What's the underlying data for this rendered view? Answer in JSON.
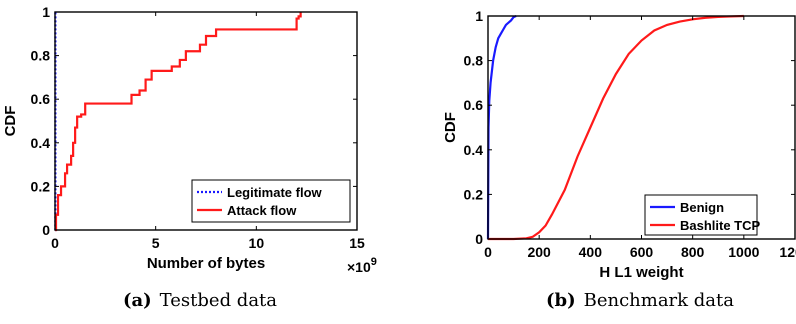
{
  "chart_data": [
    {
      "type": "line",
      "caption_tag": "(a)",
      "caption": "Testbed data",
      "xlabel": "Number of bytes",
      "x_exponent_label": "×10",
      "x_exponent_power": "9",
      "ylabel": "CDF",
      "xlim": [
        0,
        15
      ],
      "ylim": [
        0,
        1
      ],
      "x_ticks": [
        0,
        5,
        10,
        15
      ],
      "y_ticks": [
        0,
        0.2,
        0.4,
        0.6,
        0.8,
        1
      ],
      "x_tick_labels": [
        "0",
        "5",
        "10",
        "15"
      ],
      "y_tick_labels": [
        "0",
        "0.2",
        "0.4",
        "0.6",
        "0.8",
        "1"
      ],
      "legend_position": "bottom-right",
      "series": [
        {
          "name": "Legitimate flow",
          "color": "#1a1aff",
          "style": "dotted",
          "x": [
            0,
            0.02,
            0.02,
            0.02
          ],
          "y": [
            0,
            0,
            0.5,
            1
          ]
        },
        {
          "name": "Attack flow",
          "color": "#ff1a1a",
          "style": "solid",
          "step": true,
          "x": [
            0,
            0.05,
            0.15,
            0.3,
            0.5,
            0.6,
            0.8,
            0.9,
            1.0,
            1.1,
            1.2,
            1.3,
            1.5,
            2.0,
            3.8,
            4.2,
            4.5,
            4.8,
            5.6,
            5.8,
            6.2,
            6.5,
            7.2,
            7.5,
            8.0,
            12.0,
            12.1,
            12.2
          ],
          "y": [
            0,
            0.07,
            0.16,
            0.2,
            0.26,
            0.3,
            0.34,
            0.4,
            0.47,
            0.52,
            0.52,
            0.53,
            0.58,
            0.58,
            0.62,
            0.64,
            0.69,
            0.73,
            0.73,
            0.75,
            0.78,
            0.82,
            0.85,
            0.89,
            0.92,
            0.97,
            0.98,
            1.0
          ]
        }
      ]
    },
    {
      "type": "line",
      "caption_tag": "(b)",
      "caption": "Benchmark data",
      "xlabel": "H L1 weight",
      "ylabel": "CDF",
      "xlim": [
        0,
        1200
      ],
      "ylim": [
        0,
        1
      ],
      "x_ticks": [
        0,
        200,
        400,
        600,
        800,
        1000,
        1200
      ],
      "y_ticks": [
        0,
        0.2,
        0.4,
        0.6,
        0.8,
        1
      ],
      "x_tick_labels": [
        "0",
        "200",
        "400",
        "600",
        "800",
        "1000",
        "1200"
      ],
      "y_tick_labels": [
        "0",
        "0.2",
        "0.4",
        "0.6",
        "0.8",
        "1"
      ],
      "legend_position": "bottom-right",
      "series": [
        {
          "name": "Benign",
          "color": "#1a1aff",
          "style": "solid",
          "x": [
            0,
            2,
            5,
            10,
            20,
            30,
            40,
            50,
            60,
            70,
            80,
            90,
            100,
            110
          ],
          "y": [
            0,
            0.5,
            0.62,
            0.7,
            0.8,
            0.86,
            0.9,
            0.92,
            0.94,
            0.96,
            0.97,
            0.98,
            0.995,
            1.0
          ]
        },
        {
          "name": "Bashlite TCP",
          "color": "#ff1a1a",
          "style": "solid",
          "x": [
            0,
            100,
            150,
            175,
            200,
            225,
            250,
            300,
            350,
            400,
            450,
            500,
            550,
            600,
            650,
            700,
            750,
            800,
            850,
            900,
            950,
            1000
          ],
          "y": [
            0,
            0,
            0.003,
            0.01,
            0.03,
            0.06,
            0.11,
            0.22,
            0.37,
            0.5,
            0.63,
            0.74,
            0.83,
            0.89,
            0.935,
            0.96,
            0.975,
            0.985,
            0.992,
            0.996,
            0.998,
            1.0
          ]
        }
      ]
    }
  ]
}
